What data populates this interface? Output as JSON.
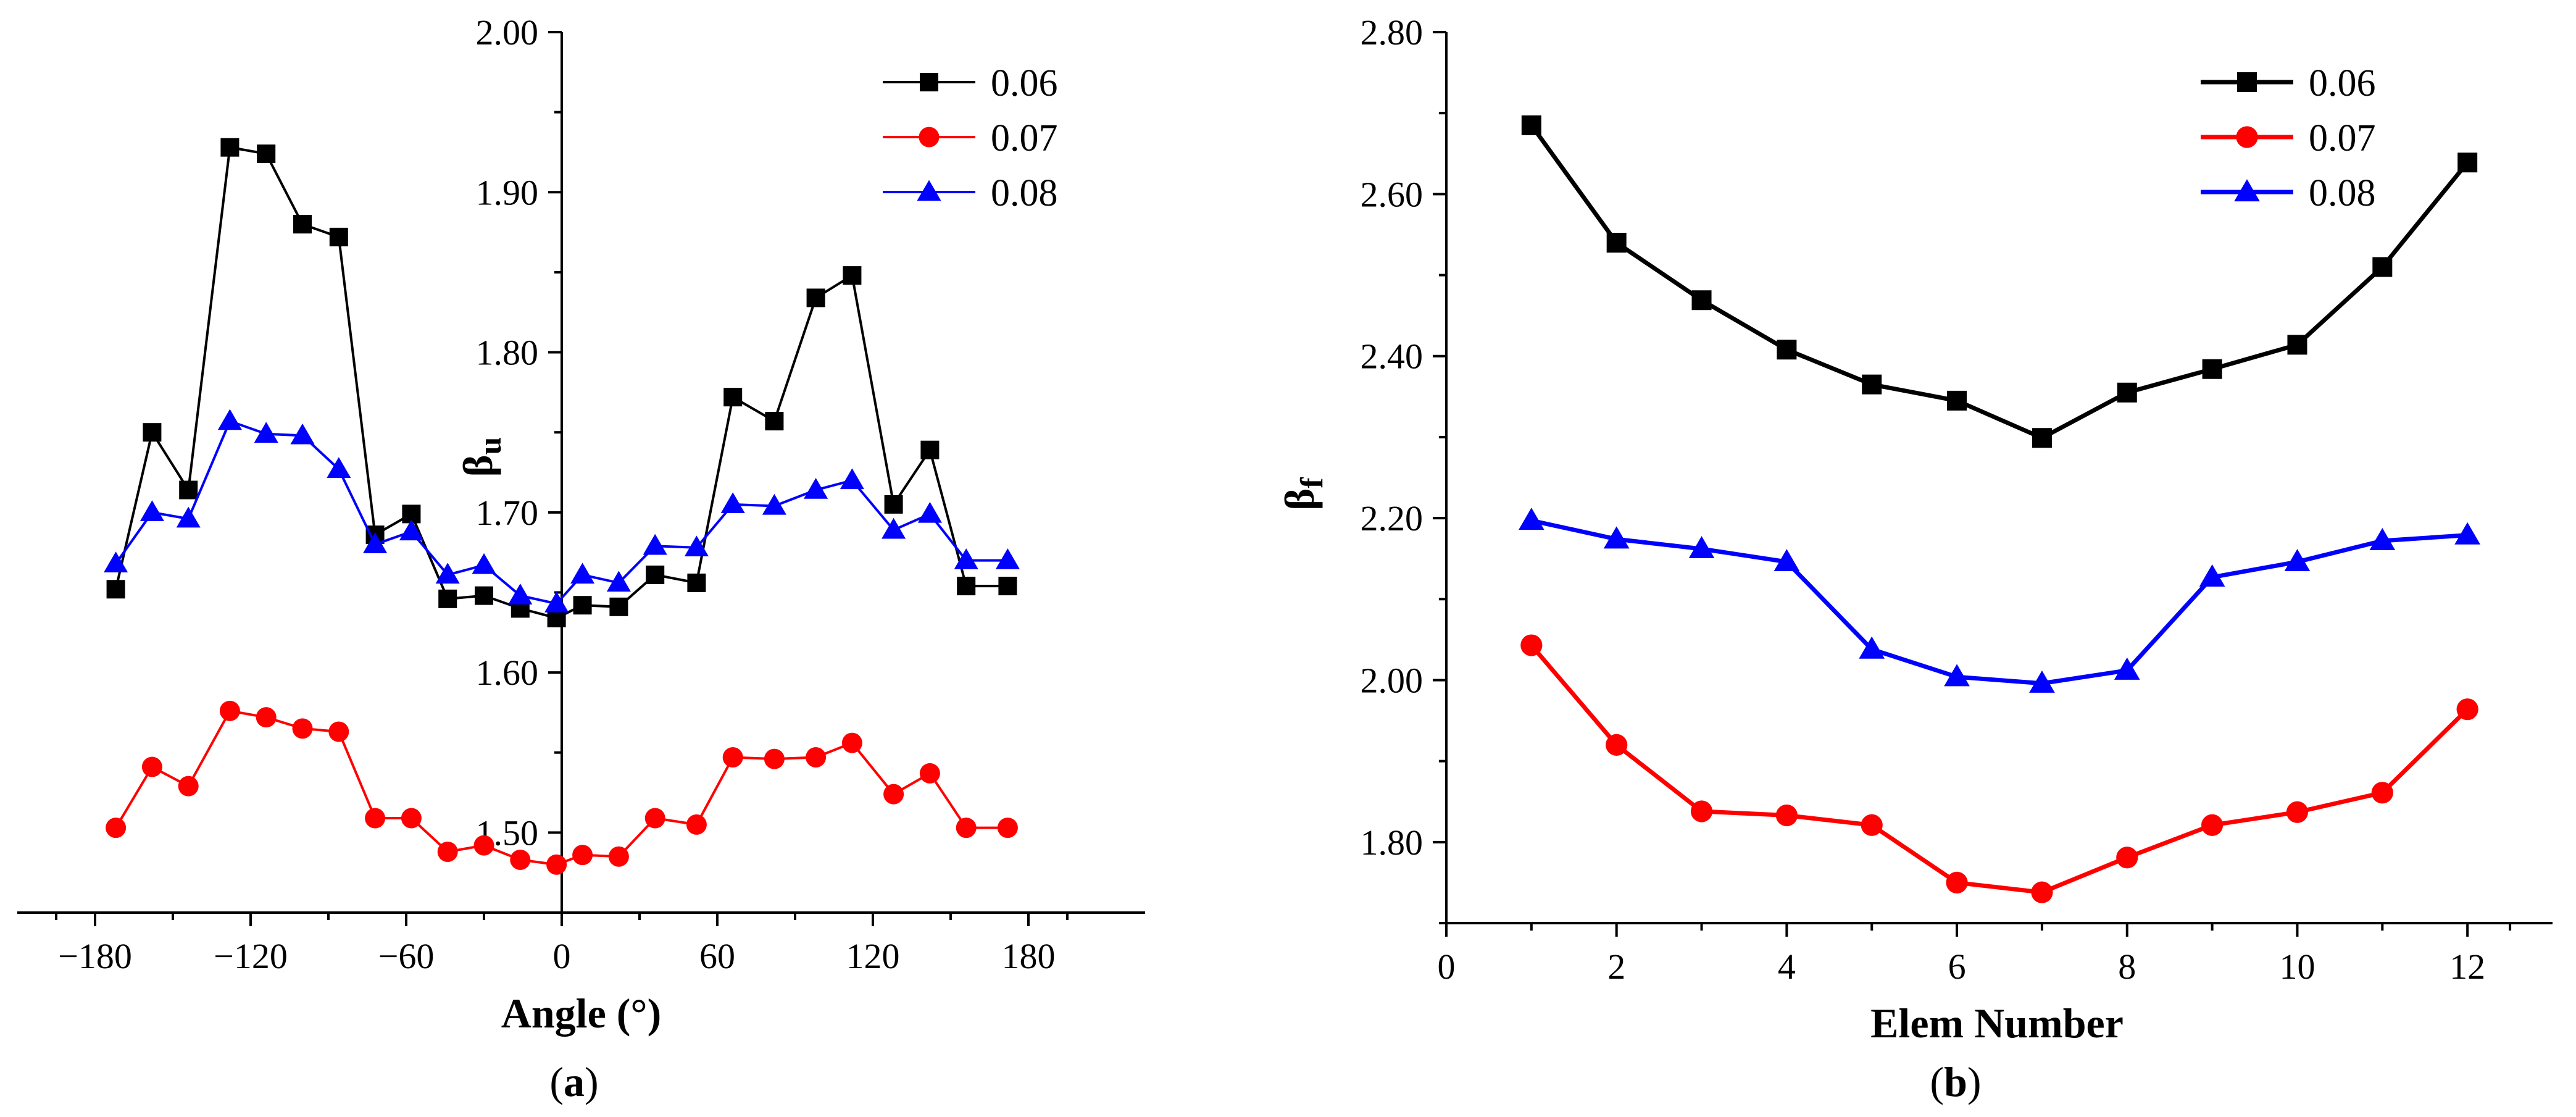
{
  "chart_data": [
    {
      "id": "a",
      "type": "line",
      "panel_label_prefix": "(",
      "panel_label_letter": "a",
      "panel_label_suffix": ")",
      "xlabel": "Angle (°)",
      "ylabel_main": "β",
      "ylabel_sub": "u",
      "xlim": [
        -210,
        225
      ],
      "ylim": [
        1.45,
        2.0
      ],
      "xticks": [
        -180,
        -120,
        -60,
        0,
        60,
        120,
        180
      ],
      "xtick_labels": [
        "−180",
        "−120",
        "−60",
        "0",
        "60",
        "120",
        "180"
      ],
      "yticks": [
        1.5,
        1.6,
        1.7,
        1.8,
        1.9,
        2.0
      ],
      "ytick_labels": [
        "1.50",
        "1.60",
        "1.70",
        "1.80",
        "1.90",
        "2.00"
      ],
      "legend_position": "top-right",
      "x": [
        -172,
        -158,
        -144,
        -128,
        -114,
        -100,
        -86,
        -72,
        -58,
        -44,
        -30,
        -16,
        -2,
        8,
        22,
        36,
        52,
        66,
        82,
        98,
        112,
        128,
        142,
        156,
        172
      ],
      "series": [
        {
          "name": "0.06",
          "color": "#000000",
          "marker": "square",
          "values": [
            1.652,
            1.75,
            1.714,
            1.928,
            1.924,
            1.88,
            1.872,
            1.686,
            1.699,
            1.646,
            1.648,
            1.64,
            1.634,
            1.642,
            1.641,
            1.661,
            1.656,
            1.772,
            1.757,
            1.834,
            1.848,
            1.705,
            1.739,
            1.654,
            1.654
          ]
        },
        {
          "name": "0.07",
          "color": "#ff0000",
          "marker": "circle",
          "values": [
            1.503,
            1.541,
            1.529,
            1.576,
            1.572,
            1.565,
            1.563,
            1.509,
            1.509,
            1.488,
            1.492,
            1.483,
            1.48,
            1.486,
            1.485,
            1.509,
            1.505,
            1.547,
            1.546,
            1.547,
            1.556,
            1.524,
            1.537,
            1.503,
            1.503
          ]
        },
        {
          "name": "0.08",
          "color": "#0000ff",
          "marker": "triangle",
          "values": [
            1.668,
            1.7,
            1.696,
            1.757,
            1.749,
            1.748,
            1.727,
            1.68,
            1.688,
            1.661,
            1.667,
            1.648,
            1.643,
            1.661,
            1.656,
            1.679,
            1.678,
            1.705,
            1.704,
            1.714,
            1.72,
            1.689,
            1.699,
            1.67,
            1.67
          ]
        }
      ]
    },
    {
      "id": "b",
      "type": "line",
      "panel_label_prefix": "(",
      "panel_label_letter": "b",
      "panel_label_suffix": ")",
      "xlabel": "Elem Number",
      "ylabel_main": "β",
      "ylabel_sub": "f",
      "xlim": [
        0,
        13
      ],
      "ylim": [
        1.7,
        2.8
      ],
      "xticks": [
        0,
        2,
        4,
        6,
        8,
        10,
        12
      ],
      "xtick_labels": [
        "0",
        "2",
        "4",
        "6",
        "8",
        "10",
        "12"
      ],
      "yticks": [
        1.8,
        2.0,
        2.2,
        2.4,
        2.6,
        2.8
      ],
      "ytick_labels": [
        "1.80",
        "2.00",
        "2.20",
        "2.40",
        "2.60",
        "2.80"
      ],
      "legend_position": "top-right",
      "x": [
        1,
        2,
        3,
        4,
        5,
        6,
        7,
        8,
        9,
        10,
        11,
        12
      ],
      "series": [
        {
          "name": "0.06",
          "color": "#000000",
          "marker": "square",
          "values": [
            2.685,
            2.54,
            2.469,
            2.408,
            2.365,
            2.345,
            2.299,
            2.355,
            2.384,
            2.414,
            2.51,
            2.639
          ]
        },
        {
          "name": "0.07",
          "color": "#ff0000",
          "marker": "circle",
          "values": [
            2.043,
            1.92,
            1.838,
            1.833,
            1.821,
            1.75,
            1.738,
            1.781,
            1.821,
            1.837,
            1.861,
            1.964
          ]
        },
        {
          "name": "0.08",
          "color": "#0000ff",
          "marker": "triangle",
          "values": [
            2.197,
            2.174,
            2.162,
            2.146,
            2.038,
            2.004,
            1.996,
            2.012,
            2.127,
            2.146,
            2.172,
            2.179
          ]
        }
      ]
    }
  ]
}
